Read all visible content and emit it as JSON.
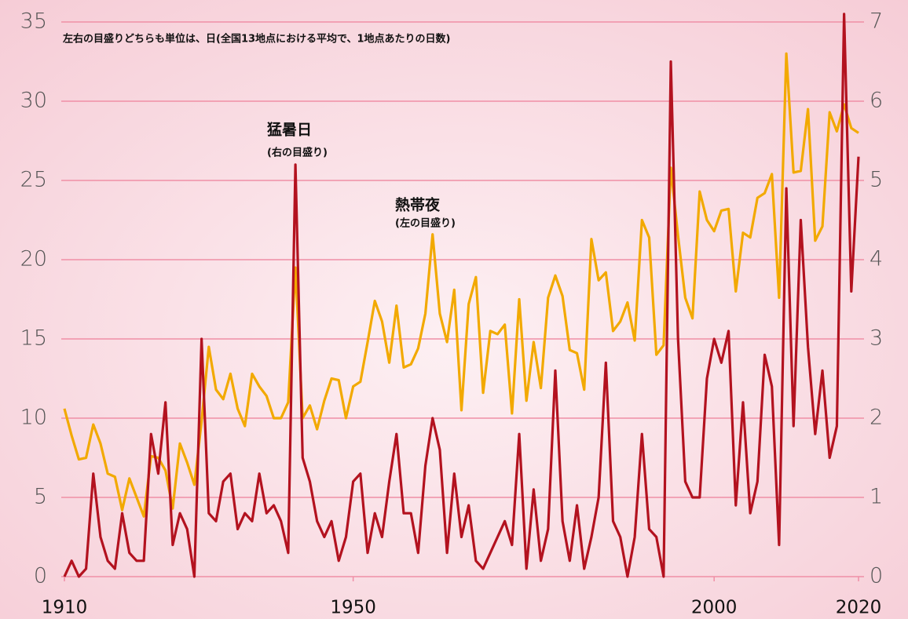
{
  "chart_data": {
    "type": "line",
    "note": "左右の目盛りどちらも単位は、日(全国13地点における平均で、1地点あたりの日数)",
    "x": [
      1910,
      1911,
      1912,
      1913,
      1914,
      1915,
      1916,
      1917,
      1918,
      1919,
      1920,
      1921,
      1922,
      1923,
      1924,
      1925,
      1926,
      1927,
      1928,
      1929,
      1930,
      1931,
      1932,
      1933,
      1934,
      1935,
      1936,
      1937,
      1938,
      1939,
      1940,
      1941,
      1942,
      1943,
      1944,
      1945,
      1946,
      1947,
      1948,
      1949,
      1950,
      1951,
      1952,
      1953,
      1954,
      1955,
      1956,
      1957,
      1958,
      1959,
      1960,
      1961,
      1962,
      1963,
      1964,
      1965,
      1966,
      1967,
      1968,
      1969,
      1970,
      1971,
      1972,
      1973,
      1974,
      1975,
      1976,
      1977,
      1978,
      1979,
      1980,
      1981,
      1982,
      1983,
      1984,
      1985,
      1986,
      1987,
      1988,
      1989,
      1990,
      1991,
      1992,
      1993,
      1994,
      1995,
      1996,
      1997,
      1998,
      1999,
      2000,
      2001,
      2002,
      2003,
      2004,
      2005,
      2006,
      2007,
      2008,
      2009,
      2010,
      2011,
      2012,
      2013,
      2014,
      2015,
      2016,
      2017,
      2018,
      2019,
      2020
    ],
    "series": [
      {
        "name": "熱帯夜",
        "scale_label": "(左の目盛り)",
        "color": "#f2a900",
        "axis": "y",
        "values": [
          10.6,
          8.9,
          7.4,
          7.5,
          9.6,
          8.4,
          6.5,
          6.3,
          4.2,
          6.2,
          5.0,
          3.8,
          7.6,
          7.5,
          6.7,
          4.3,
          8.4,
          7.2,
          5.8,
          9.8,
          14.5,
          11.8,
          11.2,
          12.8,
          10.6,
          9.5,
          12.8,
          12.0,
          11.4,
          10.0,
          10.0,
          11.0,
          19.5,
          10.0,
          10.8,
          9.3,
          11.1,
          12.5,
          12.4,
          10.0,
          12.0,
          12.3,
          14.8,
          17.4,
          16.1,
          13.5,
          17.1,
          13.2,
          13.4,
          14.4,
          16.6,
          21.6,
          16.6,
          14.8,
          18.1,
          10.5,
          17.2,
          18.9,
          11.6,
          15.5,
          15.3,
          15.9,
          10.3,
          17.5,
          11.1,
          14.8,
          11.9,
          17.6,
          19.0,
          17.7,
          14.3,
          14.1,
          11.8,
          21.3,
          18.7,
          19.2,
          15.5,
          16.1,
          17.3,
          14.9,
          22.5,
          21.4,
          14.0,
          14.6,
          25.8,
          21.5,
          17.6,
          16.3,
          24.3,
          22.5,
          21.8,
          23.1,
          23.2,
          18.0,
          21.7,
          21.4,
          23.9,
          24.2,
          25.4,
          17.6,
          33.0,
          25.5,
          25.6,
          29.5,
          21.2,
          22.1,
          29.3,
          28.1,
          29.8,
          28.3,
          28.0
        ]
      },
      {
        "name": "猛暑日",
        "scale_label": "(右の目盛り)",
        "color": "#b3121f",
        "axis": "y2",
        "values": [
          0,
          0.2,
          0,
          0.1,
          1.3,
          0.5,
          0.2,
          0.1,
          0.8,
          0.3,
          0.2,
          0.2,
          1.8,
          1.3,
          2.2,
          0.4,
          0.8,
          0.6,
          0,
          3.0,
          0.8,
          0.7,
          1.2,
          1.3,
          0.6,
          0.8,
          0.7,
          1.3,
          0.8,
          0.9,
          0.7,
          0.3,
          5.2,
          1.5,
          1.2,
          0.7,
          0.5,
          0.7,
          0.2,
          0.5,
          1.2,
          1.3,
          0.3,
          0.8,
          0.5,
          1.2,
          1.8,
          0.8,
          0.8,
          0.3,
          1.4,
          2.0,
          1.6,
          0.3,
          1.3,
          0.5,
          0.9,
          0.2,
          0.1,
          0.3,
          0.5,
          0.7,
          0.4,
          1.8,
          0.1,
          1.1,
          0.2,
          0.6,
          2.6,
          0.7,
          0.2,
          0.9,
          0.1,
          0.5,
          1.0,
          2.7,
          0.7,
          0.5,
          0,
          0.5,
          1.8,
          0.6,
          0.5,
          0,
          6.5,
          3.0,
          1.2,
          1.0,
          1.0,
          2.5,
          3.0,
          2.7,
          3.1,
          0.9,
          2.2,
          0.8,
          1.2,
          2.8,
          2.4,
          0.4,
          4.9,
          1.9,
          4.5,
          2.9,
          1.8,
          2.6,
          1.5,
          1.9,
          7.1,
          3.6,
          5.3
        ]
      }
    ],
    "xlim": [
      1910,
      2020
    ],
    "xticks": [
      1910,
      1950,
      2000,
      2020
    ],
    "ylim": [
      0,
      35
    ],
    "yticks": [
      0,
      5,
      10,
      15,
      20,
      25,
      30,
      35
    ],
    "y2lim": [
      0,
      7
    ],
    "y2ticks": [
      0,
      1,
      2,
      3,
      4,
      5,
      6,
      7
    ],
    "grid": true
  }
}
